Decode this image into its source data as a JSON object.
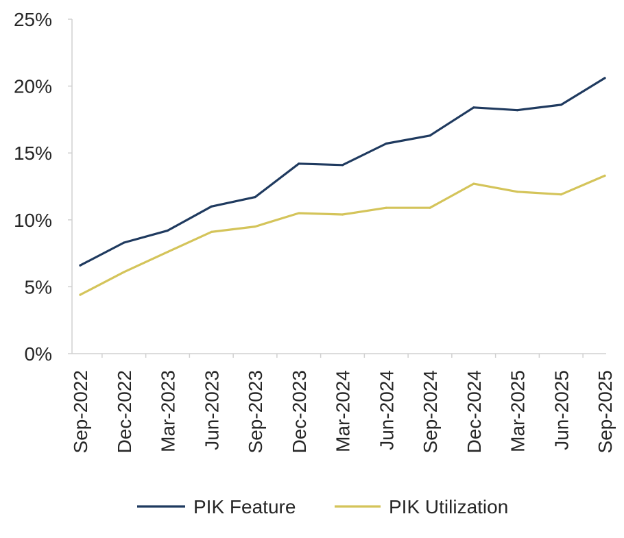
{
  "chart_data": {
    "type": "line",
    "title": "",
    "xlabel": "",
    "ylabel": "",
    "categories": [
      "Sep-2022",
      "Dec-2022",
      "Mar-2023",
      "Jun-2023",
      "Sep-2023",
      "Dec-2023",
      "Mar-2024",
      "Jun-2024",
      "Sep-2024",
      "Dec-2024",
      "Mar-2025",
      "Jun-2025",
      "Sep-2025"
    ],
    "y_ticks": [
      "0%",
      "5%",
      "10%",
      "15%",
      "20%",
      "25%"
    ],
    "y_tick_values": [
      0,
      5,
      10,
      15,
      20,
      25
    ],
    "ylim": [
      0,
      25
    ],
    "y_unit": "%",
    "grid": false,
    "legend_position": "bottom",
    "series": [
      {
        "name": "PIK Feature",
        "color": "#1f3a5f",
        "values": [
          6.6,
          8.3,
          9.2,
          11.0,
          11.7,
          14.2,
          14.1,
          15.7,
          16.3,
          18.4,
          18.2,
          18.6,
          20.6
        ]
      },
      {
        "name": "PIK Utilization",
        "color": "#d4c45a",
        "values": [
          4.4,
          6.1,
          7.6,
          9.1,
          9.5,
          10.5,
          10.4,
          10.9,
          10.9,
          12.7,
          12.1,
          11.9,
          13.3
        ]
      }
    ]
  }
}
